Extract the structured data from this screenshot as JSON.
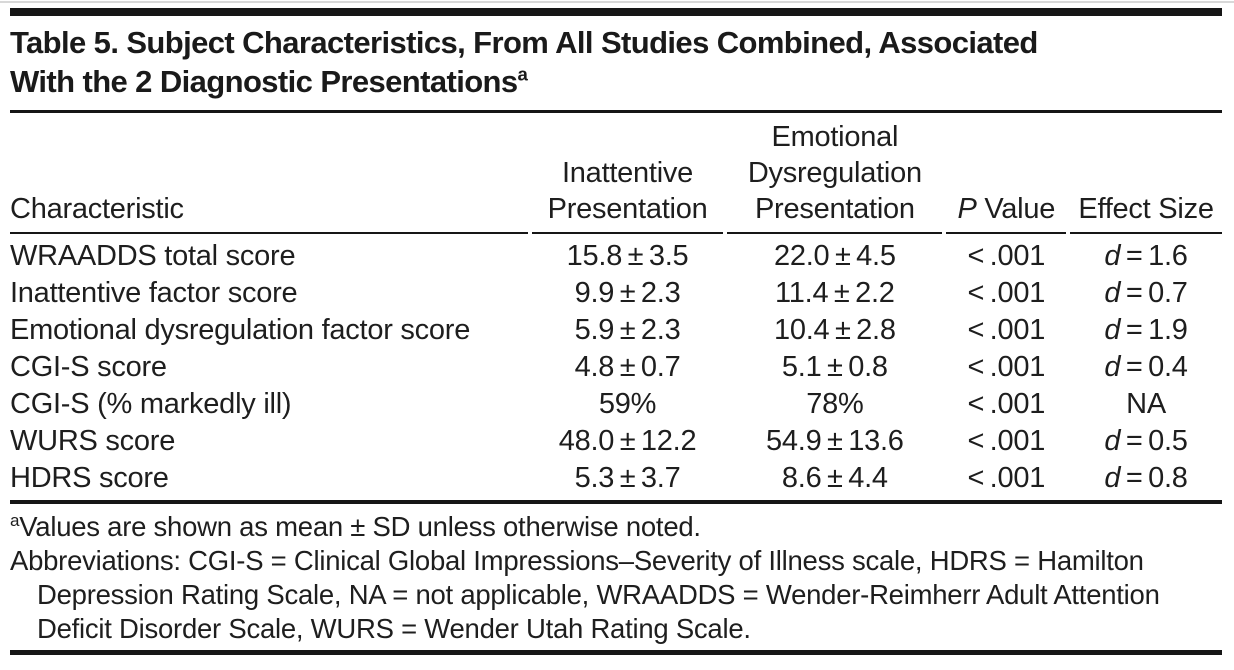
{
  "header": {
    "title_line1": "Table 5. Subject Characteristics, From All Studies Combined, Associated",
    "title_line2": "With the 2 Diagnostic Presentations",
    "title_superscript": "a"
  },
  "table": {
    "columns": [
      {
        "label": "Characteristic"
      },
      {
        "label": "Inattentive Presentation"
      },
      {
        "label": "Emotional Dysregulation Presentation"
      },
      {
        "italic": "P",
        "rest": " Value"
      },
      {
        "label": "Effect Size"
      }
    ],
    "rows": [
      {
        "characteristic": "WRAADDS total score",
        "inattentive": "15.8±3.5",
        "emotional": "22.0±4.5",
        "p_value": "<.001",
        "effect_symbol": "d",
        "effect_value": "1.6"
      },
      {
        "characteristic": "Inattentive factor score",
        "inattentive": "9.9±2.3",
        "emotional": "11.4±2.2",
        "p_value": "<.001",
        "effect_symbol": "d",
        "effect_value": "0.7"
      },
      {
        "characteristic": "Emotional dysregulation factor score",
        "inattentive": "5.9±2.3",
        "emotional": "10.4±2.8",
        "p_value": "<.001",
        "effect_symbol": "d",
        "effect_value": "1.9"
      },
      {
        "characteristic": "CGI-S score",
        "inattentive": "4.8±0.7",
        "emotional": "5.1±0.8",
        "p_value": "<.001",
        "effect_symbol": "d",
        "effect_value": "0.4"
      },
      {
        "characteristic": "CGI-S (% markedly ill)",
        "inattentive": "59%",
        "emotional": "78%",
        "p_value": "<.001",
        "effect_symbol": null,
        "effect_value": "NA"
      },
      {
        "characteristic": "WURS score",
        "inattentive": "48.0±12.2",
        "emotional": "54.9±13.6",
        "p_value": "<.001",
        "effect_symbol": "d",
        "effect_value": "0.5"
      },
      {
        "characteristic": "HDRS score",
        "inattentive": "5.3±3.7",
        "emotional": "8.6±4.4",
        "p_value": "<.001",
        "effect_symbol": "d",
        "effect_value": "0.8"
      }
    ]
  },
  "footnotes": {
    "note_a_superscript": "a",
    "note_a_text": "Values are shown as mean ± SD unless otherwise noted.",
    "abbreviations": "Abbreviations: CGI-S = Clinical Global Impressions–Severity of Illness scale, HDRS = Hamilton Depression Rating Scale, NA = not applicable, WRAADDS = Wender-Reimherr Adult Attention Deficit Disorder Scale, WURS = Wender Utah Rating Scale."
  },
  "colors": {
    "background": "#ffffff",
    "text": "#1e1e1e",
    "rule": "#161616",
    "top_hairline": "#d8d8d8"
  }
}
